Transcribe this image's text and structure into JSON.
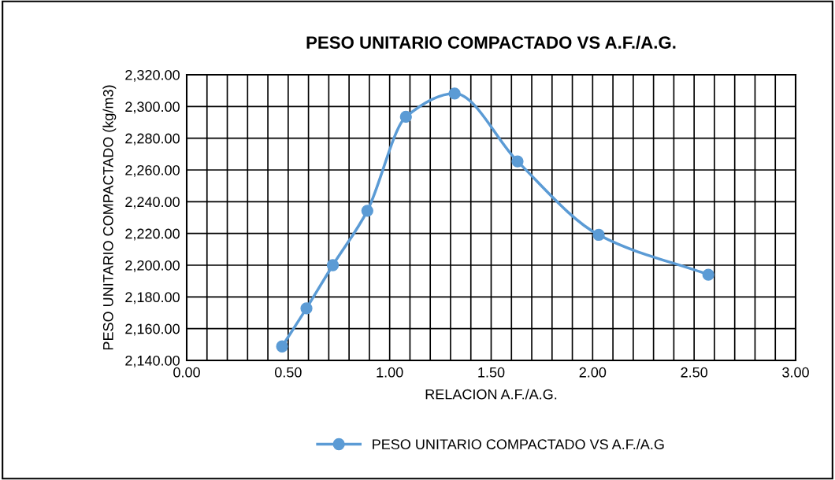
{
  "chart_data": {
    "type": "line",
    "title": "PESO UNITARIO COMPACTADO VS A.F./A.G.",
    "xlabel": "RELACION A.F./A.G.",
    "ylabel": "PESO UNITARIO COMPACTADO (kg/m3)",
    "series": [
      {
        "name": "PESO UNITARIO COMPACTADO VS A.F./A.G",
        "color": "#5b9bd5",
        "x": [
          0.47,
          0.59,
          0.72,
          0.89,
          1.08,
          1.32,
          1.63,
          2.03,
          2.57
        ],
        "values": [
          2148.8,
          2172.8,
          2200,
          2234.3,
          2293.5,
          2308.2,
          2265.4,
          2219.1,
          2194
        ]
      }
    ],
    "xlim": [
      0,
      3
    ],
    "xticks": [
      {
        "value": 0,
        "label": "0.00"
      },
      {
        "value": 0.1,
        "label": null
      },
      {
        "value": 0.2,
        "label": null
      },
      {
        "value": 0.3,
        "label": null
      },
      {
        "value": 0.4,
        "label": null
      },
      {
        "value": 0.5,
        "label": "0.50"
      },
      {
        "value": 0.6,
        "label": null
      },
      {
        "value": 0.7,
        "label": null
      },
      {
        "value": 0.8,
        "label": null
      },
      {
        "value": 0.9,
        "label": null
      },
      {
        "value": 1,
        "label": "1.00"
      },
      {
        "value": 1.1,
        "label": null
      },
      {
        "value": 1.2,
        "label": null
      },
      {
        "value": 1.3,
        "label": null
      },
      {
        "value": 1.4,
        "label": null
      },
      {
        "value": 1.5,
        "label": "1.50"
      },
      {
        "value": 1.6,
        "label": null
      },
      {
        "value": 1.7,
        "label": null
      },
      {
        "value": 1.8,
        "label": null
      },
      {
        "value": 1.9,
        "label": null
      },
      {
        "value": 2,
        "label": "2.00"
      },
      {
        "value": 2.1,
        "label": null
      },
      {
        "value": 2.2,
        "label": null
      },
      {
        "value": 2.3,
        "label": null
      },
      {
        "value": 2.4,
        "label": null
      },
      {
        "value": 2.5,
        "label": "2.50"
      },
      {
        "value": 2.6,
        "label": null
      },
      {
        "value": 2.7,
        "label": null
      },
      {
        "value": 2.8,
        "label": null
      },
      {
        "value": 2.9,
        "label": null
      },
      {
        "value": 3,
        "label": "3.00"
      }
    ],
    "ylim": [
      2140,
      2320
    ],
    "yticks": [
      {
        "value": 2140,
        "label": "2,140.00"
      },
      {
        "value": 2160,
        "label": "2,160.00"
      },
      {
        "value": 2180,
        "label": "2,180.00"
      },
      {
        "value": 2200,
        "label": "2,200.00"
      },
      {
        "value": 2220,
        "label": "2,220.00"
      },
      {
        "value": 2240,
        "label": "2,240.00"
      },
      {
        "value": 2260,
        "label": "2,260.00"
      },
      {
        "value": 2280,
        "label": "2,280.00"
      },
      {
        "value": 2300,
        "label": "2,300.00"
      },
      {
        "value": 2320,
        "label": "2,320.00"
      }
    ],
    "grid": true,
    "legend": "bottom",
    "marker": "circle",
    "line_style": "solid"
  }
}
